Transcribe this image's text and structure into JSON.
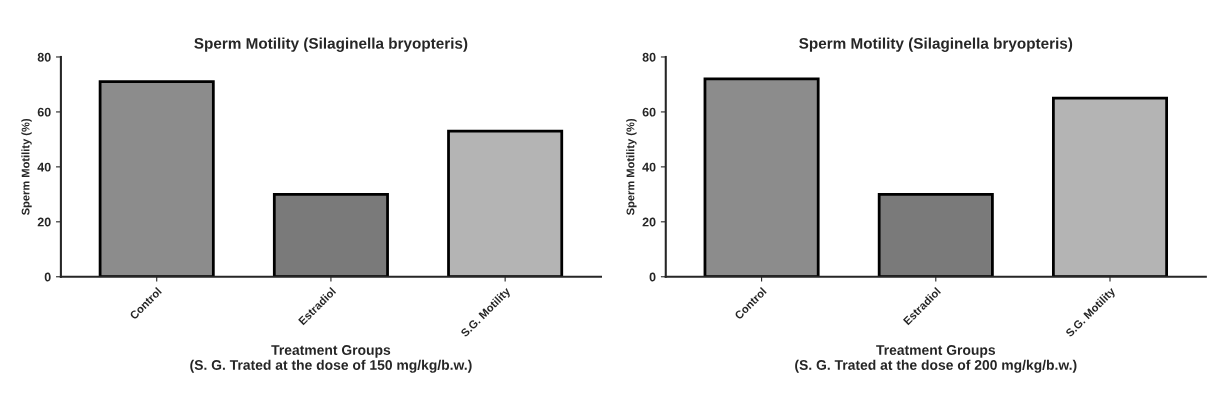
{
  "chart_data": [
    {
      "type": "bar",
      "title": "Sperm Motility (Silaginella bryopteris)",
      "xlabel": "Treatment Groups\n(S. G. Trated at the dose of 150 mg/kg/b.w.)",
      "ylabel": "Sperm Motility (%)",
      "categories": [
        "Control",
        "Estradiol",
        "S.G. Motility"
      ],
      "values": [
        71,
        30,
        53
      ],
      "colors": [
        "#8c8c8c",
        "#7a7a7a",
        "#b4b4b4"
      ],
      "ylim": [
        0,
        80
      ],
      "yticks": [
        0,
        20,
        40,
        60,
        80
      ],
      "grid": false,
      "legend": false
    },
    {
      "type": "bar",
      "title": "Sperm Motility (Silaginella bryopteris)",
      "xlabel": "Treatment Groups\n(S. G. Trated at the dose of 200 mg/kg/b.w.)",
      "ylabel": "Sperm Motility (%)",
      "categories": [
        "Control",
        "Estradiol",
        "S.G. Motility"
      ],
      "values": [
        72,
        30,
        65
      ],
      "colors": [
        "#8c8c8c",
        "#7a7a7a",
        "#b4b4b4"
      ],
      "ylim": [
        0,
        80
      ],
      "yticks": [
        0,
        20,
        40,
        60,
        80
      ],
      "grid": false,
      "legend": false
    }
  ]
}
